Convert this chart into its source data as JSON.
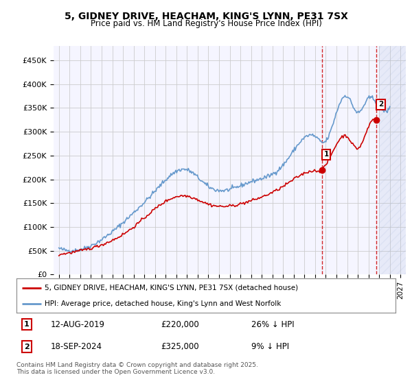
{
  "title1": "5, GIDNEY DRIVE, HEACHAM, KING'S LYNN, PE31 7SX",
  "title2": "Price paid vs. HM Land Registry's House Price Index (HPI)",
  "hpi_color": "#6699cc",
  "price_color": "#cc0000",
  "grid_color": "#cccccc",
  "annotation1": {
    "label": "1",
    "date": "12-AUG-2019",
    "price": 220000,
    "pct": "26% ↓ HPI",
    "x_year": 2019.62
  },
  "annotation2": {
    "label": "2",
    "date": "18-SEP-2024",
    "price": 325000,
    "pct": "9% ↓ HPI",
    "x_year": 2024.71
  },
  "legend1": "5, GIDNEY DRIVE, HEACHAM, KING'S LYNN, PE31 7SX (detached house)",
  "legend2": "HPI: Average price, detached house, King's Lynn and West Norfolk",
  "footer": "Contains HM Land Registry data © Crown copyright and database right 2025.\nThis data is licensed under the Open Government Licence v3.0.",
  "ylim": [
    0,
    480000
  ],
  "xlim": [
    1994.5,
    2027.5
  ],
  "yticks": [
    0,
    50000,
    100000,
    150000,
    200000,
    250000,
    300000,
    350000,
    400000,
    450000
  ],
  "ytick_labels": [
    "£0",
    "£50K",
    "£100K",
    "£150K",
    "£200K",
    "£250K",
    "£300K",
    "£350K",
    "£400K",
    "£450K"
  ],
  "xticks": [
    1995,
    1996,
    1997,
    1998,
    1999,
    2000,
    2001,
    2002,
    2003,
    2004,
    2005,
    2006,
    2007,
    2008,
    2009,
    2010,
    2011,
    2012,
    2013,
    2014,
    2015,
    2016,
    2017,
    2018,
    2019,
    2020,
    2021,
    2022,
    2023,
    2024,
    2025,
    2026,
    2027
  ],
  "hpi_key_years": [
    1995,
    2000,
    2002,
    2004,
    2007,
    2009,
    2013,
    2016,
    2019,
    2020,
    2021,
    2022,
    2023,
    2024,
    2025,
    2026
  ],
  "hpi_key_vals": [
    55000,
    90000,
    130000,
    175000,
    220000,
    185000,
    195000,
    230000,
    290000,
    280000,
    340000,
    375000,
    340000,
    370000,
    355000,
    350000
  ],
  "pp_key_years": [
    1995,
    2000,
    2002,
    2004,
    2007,
    2009,
    2013,
    2016,
    2019,
    2019.62,
    2020,
    2022,
    2023,
    2024,
    2024.71
  ],
  "pp_key_vals": [
    42000,
    72000,
    100000,
    138000,
    165000,
    148000,
    155000,
    185000,
    218000,
    220000,
    230000,
    290000,
    265000,
    310000,
    325000
  ]
}
